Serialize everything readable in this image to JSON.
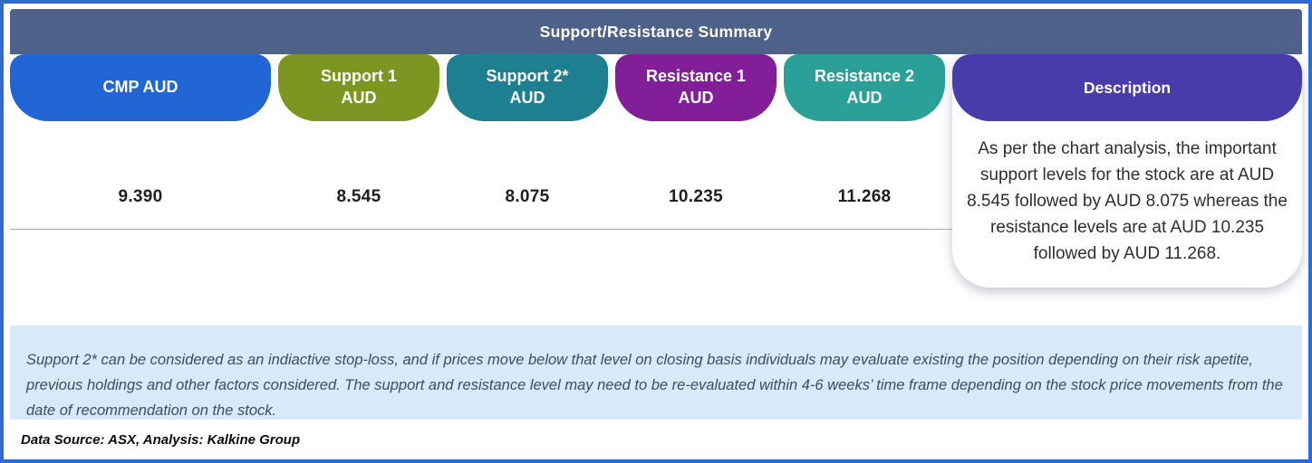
{
  "title": "Support/Resistance Summary",
  "columns": [
    {
      "label1": "CMP AUD",
      "label2": "",
      "value": "9.390",
      "color": "#2265d4"
    },
    {
      "label1": "Support 1",
      "label2": "AUD",
      "value": "8.545",
      "color": "#7d9622"
    },
    {
      "label1": "Support 2*",
      "label2": "AUD",
      "value": "8.075",
      "color": "#1e7f90"
    },
    {
      "label1": "Resistance 1",
      "label2": "AUD",
      "value": "10.235",
      "color": "#811e98"
    },
    {
      "label1": "Resistance 2",
      "label2": "AUD",
      "value": "11.268",
      "color": "#2ba099"
    }
  ],
  "description": {
    "label": "Description",
    "color": "#473caa",
    "text": "As per the chart analysis, the important support levels for the stock are at AUD 8.545 followed by AUD 8.075 whereas the resistance levels are at AUD 10.235 followed by AUD 11.268."
  },
  "note": "Support 2* can be considered as an indiactive stop-loss, and if prices move below that level on closing basis individuals may evaluate existing the position depending on their risk apetite, previous holdings and other factors considered. The support and resistance level may need to be re-evaluated within 4-6 weeks’ time frame depending on the stock price movements from  the date of recommendation on the stock.",
  "data_source": "Data Source: ASX, Analysis: Kalkine Group",
  "colors": {
    "outer_border": "#2e6bd2",
    "title_bar": "#4d6189",
    "note_background": "#d6eaf8",
    "divider": "#a6a6a6",
    "value_text": "#1e1e21"
  }
}
